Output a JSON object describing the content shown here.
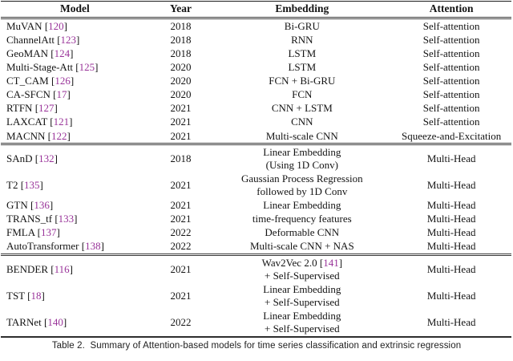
{
  "colors": {
    "citation": "#993399",
    "text": "#141414",
    "rule": "#2e2e2e"
  },
  "table": {
    "headers": [
      "Model",
      "Year",
      "Embedding",
      "Attention"
    ],
    "sections": [
      {
        "rows": [
          {
            "model": "MuVAN",
            "cite": "120",
            "year": "2018",
            "embedding": [
              {
                "text": "Bi-GRU"
              }
            ],
            "attention": "Self-attention"
          },
          {
            "model": "ChannelAtt",
            "cite": "123",
            "year": "2018",
            "embedding": [
              {
                "text": "RNN"
              }
            ],
            "attention": "Self-attention"
          },
          {
            "model": "GeoMAN",
            "cite": "124",
            "year": "2018",
            "embedding": [
              {
                "text": "LSTM"
              }
            ],
            "attention": "Self-attention"
          },
          {
            "model": "Multi-Stage-Att",
            "cite": "125",
            "year": "2020",
            "embedding": [
              {
                "text": "LSTM"
              }
            ],
            "attention": "Self-attention"
          },
          {
            "model": "CT_CAM",
            "cite": "126",
            "year": "2020",
            "embedding": [
              {
                "text": "FCN + Bi-GRU"
              }
            ],
            "attention": "Self-attention"
          },
          {
            "model": "CA-SFCN",
            "cite": "17",
            "year": "2020",
            "embedding": [
              {
                "text": "FCN"
              }
            ],
            "attention": "Self-attention"
          },
          {
            "model": "RTFN",
            "cite": "127",
            "year": "2021",
            "embedding": [
              {
                "text": "CNN + LSTM"
              }
            ],
            "attention": "Self-attention"
          },
          {
            "model": "LAXCAT",
            "cite": "121",
            "year": "2021",
            "embedding": [
              {
                "text": "CNN"
              }
            ],
            "attention": "Self-attention"
          },
          {
            "model": "MACNN",
            "cite": "122",
            "year": "2021",
            "embedding": [
              {
                "text": "Multi-scale CNN"
              }
            ],
            "attention": "Squeeze-and-Excitation"
          }
        ]
      },
      {
        "rows": [
          {
            "model": "SAnD",
            "cite": "132",
            "year": "2018",
            "embedding": [
              {
                "text": "Linear Embedding"
              },
              {
                "text": "(Using 1D Conv)"
              }
            ],
            "attention": "Multi-Head"
          },
          {
            "model": "T2",
            "cite": "135",
            "year": "2021",
            "embedding": [
              {
                "text": "Gaussian Process Regression"
              },
              {
                "text": "followed by 1D Conv"
              }
            ],
            "attention": "Multi-Head"
          },
          {
            "model": "GTN",
            "cite": "136",
            "year": "2021",
            "embedding": [
              {
                "text": "Linear Embedding"
              }
            ],
            "attention": "Multi-Head"
          },
          {
            "model": "TRANS_tf",
            "cite": "133",
            "year": "2021",
            "embedding": [
              {
                "text": "time-frequency features"
              }
            ],
            "attention": "Multi-Head"
          },
          {
            "model": "FMLA",
            "cite": "137",
            "year": "2022",
            "embedding": [
              {
                "text": "Deformable CNN"
              }
            ],
            "attention": "Multi-Head"
          },
          {
            "model": "AutoTransformer",
            "cite": "138",
            "year": "2022",
            "embedding": [
              {
                "text": "Multi-scale CNN + NAS"
              }
            ],
            "attention": "Multi-Head"
          }
        ]
      },
      {
        "rows": [
          {
            "model": "BENDER",
            "cite": "116",
            "year": "2021",
            "embedding": [
              {
                "text": "Wav2Vec 2.0",
                "cite": "141"
              },
              {
                "text": "+ Self-Supervised"
              }
            ],
            "attention": "Multi-Head"
          },
          {
            "model": "TST",
            "cite": "18",
            "year": "2021",
            "embedding": [
              {
                "text": "Linear Embedding"
              },
              {
                "text": "+ Self-Supervised"
              }
            ],
            "attention": "Multi-Head"
          },
          {
            "model": "TARNet",
            "cite": "140",
            "year": "2022",
            "embedding": [
              {
                "text": "Linear Embedding"
              },
              {
                "text": "+ Self-Supervised"
              }
            ],
            "attention": "Multi-Head"
          }
        ]
      }
    ]
  },
  "caption": "Table 2.  Summary of Attention-based models for time series classification and extrinsic regression"
}
